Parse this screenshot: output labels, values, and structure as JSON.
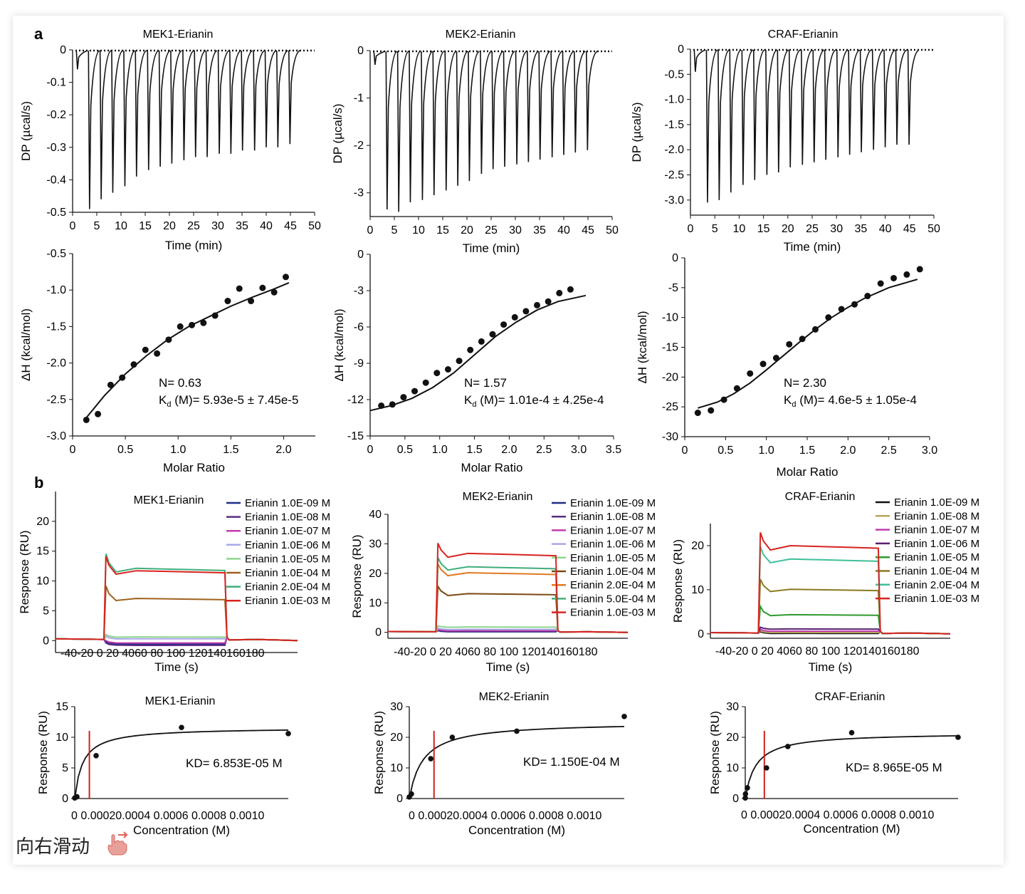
{
  "panel_labels": {
    "a": "a",
    "b": "b"
  },
  "swipe_hint": "向右滑动",
  "colors": {
    "fit_line": "#111111",
    "kd_marker": "#d0201c",
    "points": "#111111"
  },
  "chart_data": [
    {
      "id": "itc-raw-mek1",
      "type": "line",
      "title": "MEK1-Erianin",
      "xlabel": "Time (min)",
      "ylabel": "DP (µcal/s)",
      "xlim": [
        0,
        50
      ],
      "ylim": [
        -0.5,
        0
      ],
      "xticks": [
        "0",
        "5",
        "10",
        "15",
        "20",
        "25",
        "30",
        "35",
        "40",
        "45",
        "50"
      ],
      "yticks": [
        "0",
        "-0.1",
        "-0.2",
        "-0.3",
        "-0.4",
        "-0.5"
      ],
      "injection_times": [
        1.0,
        3.5,
        5.9,
        8.3,
        10.8,
        13.2,
        15.7,
        18.1,
        20.5,
        23.0,
        25.4,
        27.8,
        30.3,
        32.7,
        35.1,
        37.6,
        40.0,
        42.4,
        44.9
      ],
      "peak_values": [
        -0.06,
        -0.49,
        -0.46,
        -0.44,
        -0.42,
        -0.39,
        -0.37,
        -0.36,
        -0.35,
        -0.34,
        -0.33,
        -0.33,
        -0.32,
        -0.32,
        -0.31,
        -0.31,
        -0.3,
        -0.3,
        -0.29
      ]
    },
    {
      "id": "itc-raw-mek2",
      "type": "line",
      "title": "MEK2-Erianin",
      "xlabel": "Time (min)",
      "ylabel": "DP (µcal/s)",
      "xlim": [
        0,
        50
      ],
      "ylim": [
        -3.5,
        0
      ],
      "xticks": [
        "0",
        "5",
        "10",
        "15",
        "20",
        "25",
        "30",
        "35",
        "40",
        "45",
        "50"
      ],
      "yticks": [
        "0",
        "-1",
        "-2",
        "-3"
      ],
      "injection_times": [
        1.0,
        3.5,
        5.9,
        8.3,
        10.8,
        13.2,
        15.7,
        18.1,
        20.5,
        23.0,
        25.4,
        27.8,
        30.3,
        32.7,
        35.1,
        37.6,
        40.0,
        42.4,
        44.9
      ],
      "peak_values": [
        -0.3,
        -3.35,
        -3.4,
        -3.2,
        -3.15,
        -3.05,
        -2.95,
        -2.85,
        -2.75,
        -2.6,
        -2.5,
        -2.45,
        -2.4,
        -2.35,
        -2.3,
        -2.25,
        -2.2,
        -2.15,
        -2.1
      ]
    },
    {
      "id": "itc-raw-craf",
      "type": "line",
      "title": "CRAF-Erianin",
      "xlabel": "Time (min)",
      "ylabel": "DP (µcal/s)",
      "xlim": [
        0,
        50
      ],
      "ylim": [
        -3.3,
        0
      ],
      "xticks": [
        "0",
        "5",
        "10",
        "15",
        "20",
        "25",
        "30",
        "35",
        "40",
        "45",
        "50"
      ],
      "yticks": [
        "0",
        "-0.5",
        "-1.0",
        "-1.5",
        "-2.0",
        "-2.5",
        "-3.0"
      ],
      "injection_times": [
        1.0,
        3.5,
        5.9,
        8.3,
        10.8,
        13.2,
        15.7,
        18.1,
        20.5,
        23.0,
        25.4,
        27.8,
        30.3,
        32.7,
        35.1,
        37.6,
        40.0,
        42.4,
        44.9
      ],
      "peak_values": [
        -0.45,
        -3.05,
        -3.0,
        -2.85,
        -2.7,
        -2.6,
        -2.5,
        -2.45,
        -2.35,
        -2.3,
        -2.25,
        -2.2,
        -2.15,
        -2.1,
        -2.05,
        -2.0,
        -1.95,
        -1.9,
        -1.9
      ]
    },
    {
      "id": "itc-fit-mek1",
      "type": "scatter",
      "title": "",
      "xlabel": "Molar Ratio",
      "ylabel": "ΔH (kcal/mol)",
      "xlim": [
        0,
        2.3
      ],
      "ylim": [
        -3.0,
        -0.5
      ],
      "xticks": [
        "0",
        "0.5",
        "1.0",
        "1.5",
        "2.0"
      ],
      "yticks": [
        "-0.5",
        "-1.0",
        "-1.5",
        "-2.0",
        "-2.5",
        "-3.0"
      ],
      "x": [
        0.13,
        0.24,
        0.36,
        0.47,
        0.58,
        0.69,
        0.8,
        0.91,
        1.02,
        1.13,
        1.24,
        1.35,
        1.47,
        1.58,
        1.69,
        1.8,
        1.91,
        2.02
      ],
      "y": [
        -2.78,
        -2.7,
        -2.3,
        -2.2,
        -2.02,
        -1.82,
        -1.87,
        -1.68,
        -1.5,
        -1.48,
        -1.45,
        -1.35,
        -1.15,
        -0.98,
        -1.15,
        -0.97,
        -1.03,
        -0.82
      ],
      "fit_x": [
        0.13,
        0.3,
        0.5,
        0.7,
        0.9,
        1.1,
        1.3,
        1.5,
        1.7,
        1.9,
        2.05
      ],
      "fit_y": [
        -2.75,
        -2.45,
        -2.15,
        -1.9,
        -1.68,
        -1.5,
        -1.36,
        -1.22,
        -1.1,
        -0.99,
        -0.9
      ],
      "annotation_n": "N= 0.63",
      "annotation_kd_prefix": "K",
      "annotation_kd_sub": "d",
      "annotation_kd_value": " (M)= 5.93e-5 ± 7.45e-5"
    },
    {
      "id": "itc-fit-mek2",
      "type": "scatter",
      "title": "",
      "xlabel": "Molar Ratio",
      "ylabel": "ΔH (kcal/mol)",
      "xlim": [
        0,
        3.5
      ],
      "ylim": [
        -15,
        0
      ],
      "xticks": [
        "0",
        "0.5",
        "1.0",
        "1.5",
        "2.0",
        "2.5",
        "3.0",
        "3.5"
      ],
      "yticks": [
        "0",
        "-3",
        "-6",
        "-9",
        "-12",
        "-15"
      ],
      "x": [
        0.16,
        0.32,
        0.48,
        0.64,
        0.8,
        0.96,
        1.12,
        1.28,
        1.44,
        1.6,
        1.76,
        1.92,
        2.08,
        2.24,
        2.4,
        2.56,
        2.72,
        2.88
      ],
      "y": [
        -12.5,
        -12.4,
        -11.8,
        -11.3,
        -10.6,
        -9.8,
        -9.5,
        -8.8,
        -7.9,
        -7.2,
        -6.6,
        -5.8,
        -5.2,
        -4.7,
        -4.2,
        -3.9,
        -3.2,
        -2.9
      ],
      "fit_x": [
        0,
        0.3,
        0.6,
        0.9,
        1.2,
        1.5,
        1.8,
        2.1,
        2.4,
        2.7,
        3.1
      ],
      "fit_y": [
        -12.9,
        -12.5,
        -11.9,
        -11.0,
        -9.8,
        -8.3,
        -6.8,
        -5.6,
        -4.6,
        -3.9,
        -3.4
      ],
      "annotation_n": "N= 1.57",
      "annotation_kd_prefix": "K",
      "annotation_kd_sub": "d",
      "annotation_kd_value": " (M)= 1.01e-4 ± 4.25e-4"
    },
    {
      "id": "itc-fit-craf",
      "type": "scatter",
      "title": "",
      "xlabel": "Molar Ratio",
      "ylabel": "ΔH (kcal/mol)",
      "xlim": [
        0,
        3.0
      ],
      "ylim": [
        -30,
        0
      ],
      "xticks": [
        "0",
        "0.5",
        "1.0",
        "1.5",
        "2.0",
        "2.5",
        "3.0"
      ],
      "yticks": [
        "0",
        "-5",
        "-10",
        "-15",
        "-20",
        "-25",
        "-30"
      ],
      "x": [
        0.16,
        0.32,
        0.48,
        0.64,
        0.8,
        0.96,
        1.12,
        1.28,
        1.44,
        1.6,
        1.76,
        1.92,
        2.08,
        2.24,
        2.4,
        2.56,
        2.72,
        2.88
      ],
      "y": [
        -26.0,
        -25.6,
        -23.8,
        -21.9,
        -19.4,
        -17.8,
        -16.8,
        -14.5,
        -13.6,
        -12.0,
        -10.0,
        -8.6,
        -7.8,
        -6.4,
        -4.3,
        -3.4,
        -2.8,
        -1.9
      ],
      "fit_x": [
        0.16,
        0.4,
        0.6,
        0.8,
        1.0,
        1.2,
        1.4,
        1.6,
        1.8,
        2.0,
        2.2,
        2.5,
        2.85
      ],
      "fit_y": [
        -25.2,
        -24.2,
        -22.8,
        -21.0,
        -18.8,
        -16.5,
        -14.2,
        -12.0,
        -10.0,
        -8.3,
        -6.8,
        -5.0,
        -3.6
      ],
      "annotation_n": "N= 2.30",
      "annotation_kd_prefix": "K",
      "annotation_kd_sub": "d",
      "annotation_kd_value": " (M)= 4.6e-5 ± 1.05e-4"
    },
    {
      "id": "spr-sensor-mek1",
      "type": "line",
      "title": "MEK1-Erianin",
      "xlabel": "Time (s)",
      "ylabel": "Response (RU)",
      "xlim": [
        -50,
        190
      ],
      "ylim": [
        -2,
        25
      ],
      "xticks_text": "-40-20 0 20 4060 80 100 120140160180",
      "yticks": [
        "0",
        "5",
        "10",
        "15",
        "20"
      ],
      "series": [
        {
          "name": "Erianin 1.0E-09 M",
          "color": "#1f2e8a",
          "plateau": -0.6
        },
        {
          "name": "Erianin 1.0E-08 M",
          "color": "#5a2d82",
          "plateau": -0.8
        },
        {
          "name": "Erianin 1.0E-07 M",
          "color": "#c23bb0",
          "plateau": -0.4
        },
        {
          "name": "Erianin 1.0E-06 M",
          "color": "#a8a8e8",
          "plateau": 0.3
        },
        {
          "name": "Erianin 1.0E-05 M",
          "color": "#8fd48f",
          "plateau": 0.6
        },
        {
          "name": "Erianin 1.0E-04 M",
          "color": "#a0611e",
          "plateau": 7.0
        },
        {
          "name": "Erianin 2.0E-04 M",
          "color": "#3fae7a",
          "plateau": 12.0
        },
        {
          "name": "Erianin 1.0E-03 M",
          "color": "#d8231f",
          "plateau": 11.6
        }
      ]
    },
    {
      "id": "spr-sensor-mek2",
      "type": "line",
      "title": "MEK2-Erianin",
      "xlabel": "Time (s)",
      "ylabel": "Response (RU)",
      "xlim": [
        -50,
        190
      ],
      "ylim": [
        -2,
        40
      ],
      "xticks_text": "-40-20 0 20 4060 80 100 120140160180",
      "yticks": [
        "0",
        "10",
        "20",
        "30",
        "40"
      ],
      "series": [
        {
          "name": "Erianin 1.0E-09 M",
          "color": "#1f2e8a",
          "plateau": 0.2
        },
        {
          "name": "Erianin 1.0E-08 M",
          "color": "#5a2d82",
          "plateau": 0.4
        },
        {
          "name": "Erianin 1.0E-07 M",
          "color": "#c23bb0",
          "plateau": 0.6
        },
        {
          "name": "Erianin 1.0E-06 M",
          "color": "#a8a8e8",
          "plateau": 1.0
        },
        {
          "name": "Erianin 1.0E-05 M",
          "color": "#8fd48f",
          "plateau": 1.8
        },
        {
          "name": "Erianin 1.0E-04 M",
          "color": "#7a4a12",
          "plateau": 13.0
        },
        {
          "name": "Erianin 2.0E-04 M",
          "color": "#e07a22",
          "plateau": 20.0
        },
        {
          "name": "Erianin 5.0E-04 M",
          "color": "#3fae7a",
          "plateau": 22.0
        },
        {
          "name": "Erianin 1.0E-03 M",
          "color": "#d8231f",
          "plateau": 26.5
        }
      ]
    },
    {
      "id": "spr-sensor-craf",
      "type": "line",
      "title": "CRAF-Erianin",
      "xlabel": "Time (s)",
      "ylabel": "Response (RU)",
      "xlim": [
        -50,
        190
      ],
      "ylim": [
        -1,
        25
      ],
      "xticks_text": "-40-20 0 20 4060 80 100 120140160180",
      "yticks": [
        "0",
        "10",
        "20"
      ],
      "series": [
        {
          "name": "Erianin 1.0E-09 M",
          "color": "#111111",
          "plateau": 0.1
        },
        {
          "name": "Erianin 1.0E-08 M",
          "color": "#b5a85a",
          "plateau": 0.3
        },
        {
          "name": "Erianin 1.0E-07 M",
          "color": "#c23bb0",
          "plateau": 0.6
        },
        {
          "name": "Erianin 1.0E-06 M",
          "color": "#5a1e6e",
          "plateau": 1.1
        },
        {
          "name": "Erianin 1.0E-05 M",
          "color": "#2e9a2e",
          "plateau": 4.3
        },
        {
          "name": "Erianin 1.0E-04 M",
          "color": "#8a7a1e",
          "plateau": 10.0
        },
        {
          "name": "Erianin 2.0E-04 M",
          "color": "#3fbf9a",
          "plateau": 16.8
        },
        {
          "name": "Erianin 1.0E-03 M",
          "color": "#d8231f",
          "plateau": 19.8
        }
      ]
    },
    {
      "id": "spr-fit-mek1",
      "type": "scatter",
      "title": "MEK1-Erianin",
      "xlabel": "Concentration (M)",
      "ylabel": "Response (RU)",
      "xlim": [
        0,
        0.001
      ],
      "ylim": [
        0,
        15
      ],
      "xticks_text": "0 0.00020.0004 0.0006 0.0008 0.0010",
      "yticks": [
        "0",
        "5",
        "10",
        "15"
      ],
      "x": [
        0.0,
        1e-05,
        0.0001,
        0.0005,
        0.001
      ],
      "y": [
        0.1,
        0.3,
        7.0,
        11.6,
        10.6
      ],
      "kd_value": 6.853e-05,
      "fit_max": 11.6,
      "annotation": "KD= 6.853E-05 M"
    },
    {
      "id": "spr-fit-mek2",
      "type": "scatter",
      "title": "MEK2-Erianin",
      "xlabel": "Concentration (M)",
      "ylabel": "Response (RU)",
      "xlim": [
        0,
        0.001
      ],
      "ylim": [
        0,
        30
      ],
      "xticks_text": "0 0.00020.0004 0.0006 0.0008 0.0010",
      "yticks": [
        "0",
        "10",
        "20",
        "30"
      ],
      "x": [
        0.0,
        1e-05,
        0.0001,
        0.0002,
        0.0005,
        0.001
      ],
      "y": [
        0.5,
        1.5,
        13.0,
        20.0,
        22.0,
        26.8
      ],
      "kd_value": 0.000115,
      "fit_max": 25.0,
      "annotation": "KD= 1.150E-04 M"
    },
    {
      "id": "spr-fit-craf",
      "type": "scatter",
      "title": "CRAF-Erianin",
      "xlabel": "Concentration (M)",
      "ylabel": "Response (RU)",
      "xlim": [
        0,
        0.001
      ],
      "ylim": [
        0,
        30
      ],
      "xticks_text": "0 0.00020.0004 0.0006 0.0008 0.0010",
      "yticks": [
        "0",
        "10",
        "20",
        "30"
      ],
      "x": [
        0.0,
        1e-06,
        1e-05,
        0.0001,
        0.0002,
        0.0005,
        0.001
      ],
      "y": [
        0.2,
        1.5,
        3.5,
        10.0,
        17.0,
        21.5,
        20.0
      ],
      "kd_value": 8.965e-05,
      "fit_max": 21.5,
      "annotation": "KD= 8.965E-05 M"
    }
  ]
}
